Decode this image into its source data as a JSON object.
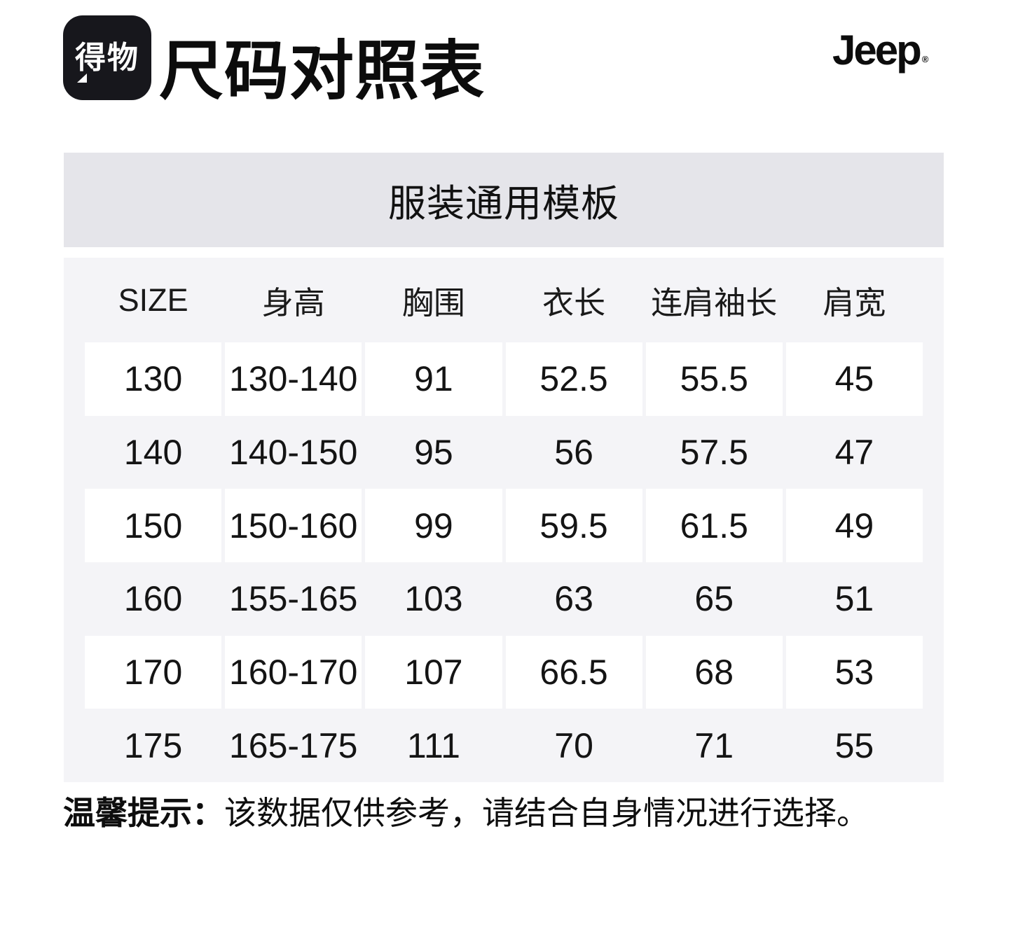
{
  "header": {
    "logo_text": "得物",
    "title": "尺码对照表",
    "brand": "Jeep",
    "brand_reg": "®"
  },
  "banner": {
    "label": "服装通用模板"
  },
  "chart_data": {
    "type": "table",
    "title": "尺码对照表",
    "subtitle": "服装通用模板",
    "columns": [
      "SIZE",
      "身高",
      "胸围",
      "衣长",
      "连肩袖长",
      "肩宽"
    ],
    "rows": [
      [
        "130",
        "130-140",
        "91",
        "52.5",
        "55.5",
        "45"
      ],
      [
        "140",
        "140-150",
        "95",
        "56",
        "57.5",
        "47"
      ],
      [
        "150",
        "150-160",
        "99",
        "59.5",
        "61.5",
        "49"
      ],
      [
        "160",
        "155-165",
        "103",
        "63",
        "65",
        "51"
      ],
      [
        "170",
        "160-170",
        "107",
        "66.5",
        "68",
        "53"
      ],
      [
        "175",
        "165-175",
        "111",
        "70",
        "71",
        "55"
      ]
    ]
  },
  "footer": {
    "tip_label": "温馨提示：",
    "tip_text": "该数据仅供参考，请结合自身情况进行选择。"
  },
  "colors": {
    "banner_bg": "#e5e5ea",
    "table_bg": "#f4f4f7",
    "row_alt_bg": "#ffffff",
    "logo_bg": "#17171c",
    "text": "#141414"
  }
}
